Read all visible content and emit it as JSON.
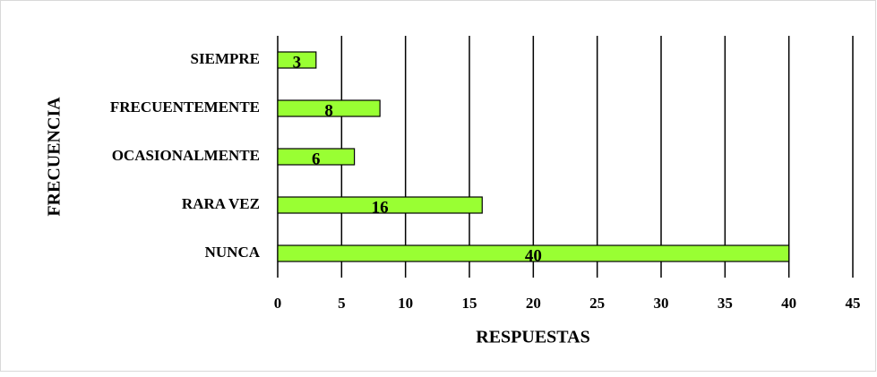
{
  "chart_data": {
    "type": "bar",
    "orientation": "horizontal",
    "categories": [
      "SIEMPRE",
      "FRECUENTEMENTE",
      "OCASIONALMENTE",
      "RARA VEZ",
      "NUNCA"
    ],
    "values": [
      3,
      8,
      6,
      16,
      40
    ],
    "color": "#99ff33",
    "xlabel": "RESPUESTAS",
    "ylabel": "FRECUENCIA",
    "xlim": [
      0,
      45
    ],
    "xticks": [
      0,
      5,
      10,
      15,
      20,
      25,
      30,
      35,
      40,
      45
    ],
    "grid": true
  }
}
